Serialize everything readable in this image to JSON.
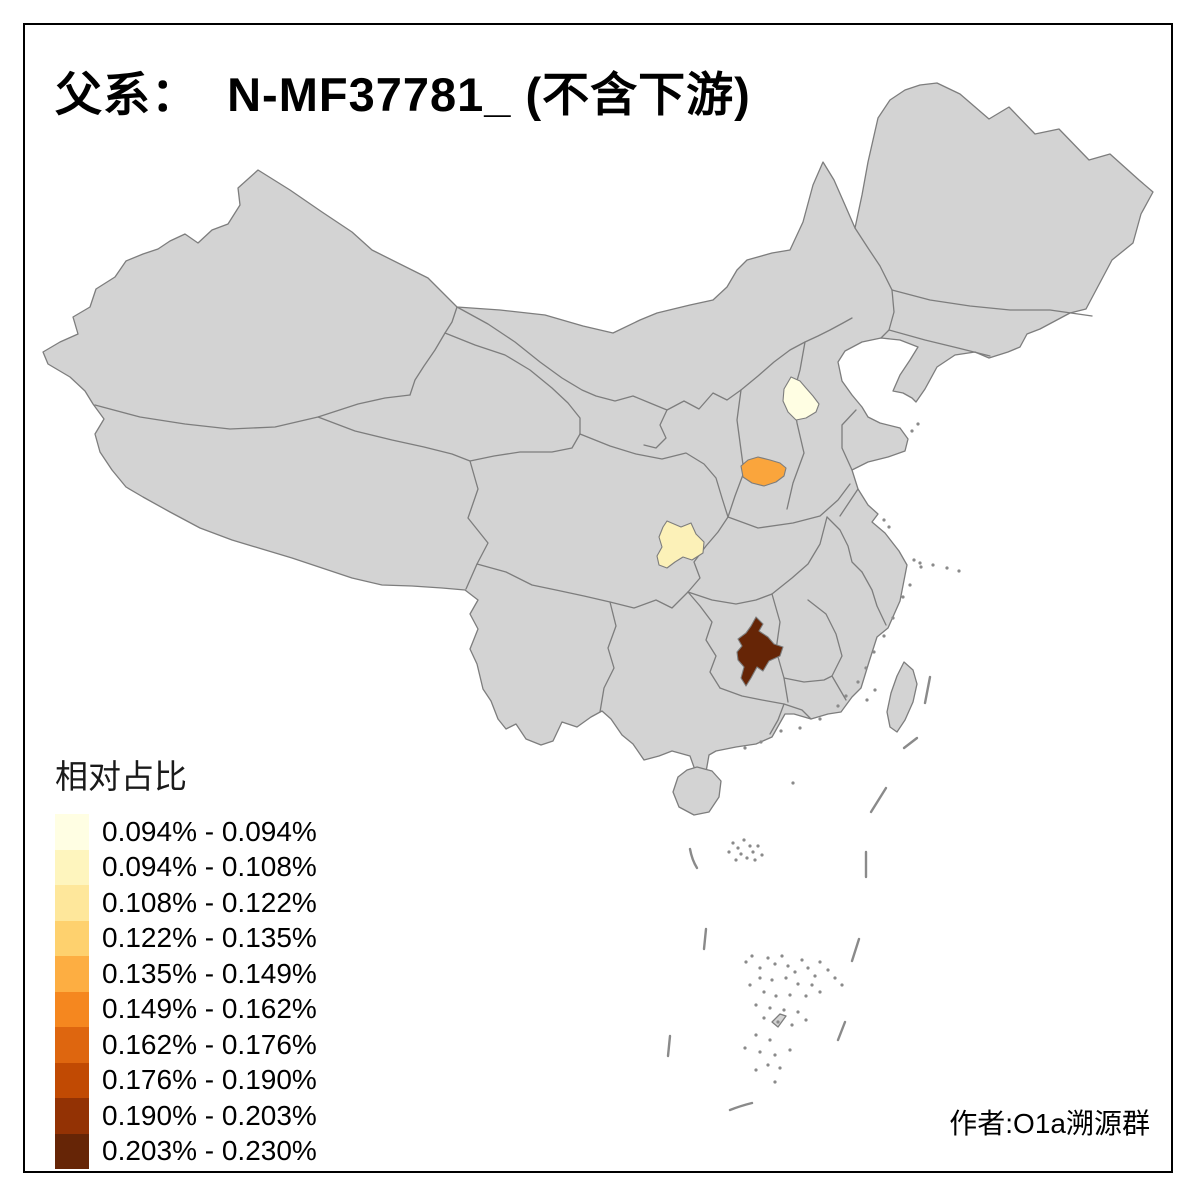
{
  "title": {
    "text": "父系：  N-MF37781_ (不含下游)"
  },
  "legend": {
    "title": "相对占比",
    "classes": [
      {
        "label": "0.094% - 0.094%",
        "color": "#FFFEE3"
      },
      {
        "label": "0.094% - 0.108%",
        "color": "#FEF5BE"
      },
      {
        "label": "0.108% - 0.122%",
        "color": "#FEE79B"
      },
      {
        "label": "0.122% - 0.135%",
        "color": "#FED16E"
      },
      {
        "label": "0.135% - 0.149%",
        "color": "#FDAE42"
      },
      {
        "label": "0.149% - 0.162%",
        "color": "#F5871F"
      },
      {
        "label": "0.162% - 0.176%",
        "color": "#DE660F"
      },
      {
        "label": "0.176% - 0.190%",
        "color": "#C14A03"
      },
      {
        "label": "0.190% - 0.203%",
        "color": "#933204"
      },
      {
        "label": "0.203% - 0.230%",
        "color": "#662506"
      }
    ]
  },
  "attribution": {
    "text": "作者:O1a溯源群"
  },
  "map": {
    "land_color": "#D3D3D3",
    "border_color": "#7D7D7D",
    "sea_color": "#FFFFFF",
    "highlighted_regions": [
      {
        "id": "region-north",
        "class_label": "0.094% - 0.094%",
        "color": "#FFFEE3"
      },
      {
        "id": "region-central-west",
        "class_label": "0.094% - 0.108%",
        "color": "#FCF1B8"
      },
      {
        "id": "region-central",
        "class_label": "0.135% - 0.149%",
        "color": "#FAA53C"
      },
      {
        "id": "region-south",
        "class_label": "0.203% - 0.230%",
        "color": "#662506"
      }
    ]
  },
  "chart_data": {
    "type": "choropleth-map",
    "title": "父系：  N-MF37781_ (不含下游)",
    "legend_title": "相对占比",
    "bins": [
      "0.094% - 0.094%",
      "0.094% - 0.108%",
      "0.108% - 0.122%",
      "0.122% - 0.135%",
      "0.135% - 0.149%",
      "0.149% - 0.162%",
      "0.162% - 0.176%",
      "0.176% - 0.190%",
      "0.190% - 0.203%",
      "0.203% - 0.230%"
    ],
    "highlighted_region_values": [
      {
        "region": "region-north",
        "bin": "0.094% - 0.094%"
      },
      {
        "region": "region-central-west",
        "bin": "0.094% - 0.108%"
      },
      {
        "region": "region-central",
        "bin": "0.135% - 0.149%"
      },
      {
        "region": "region-south",
        "bin": "0.203% - 0.230%"
      }
    ]
  }
}
